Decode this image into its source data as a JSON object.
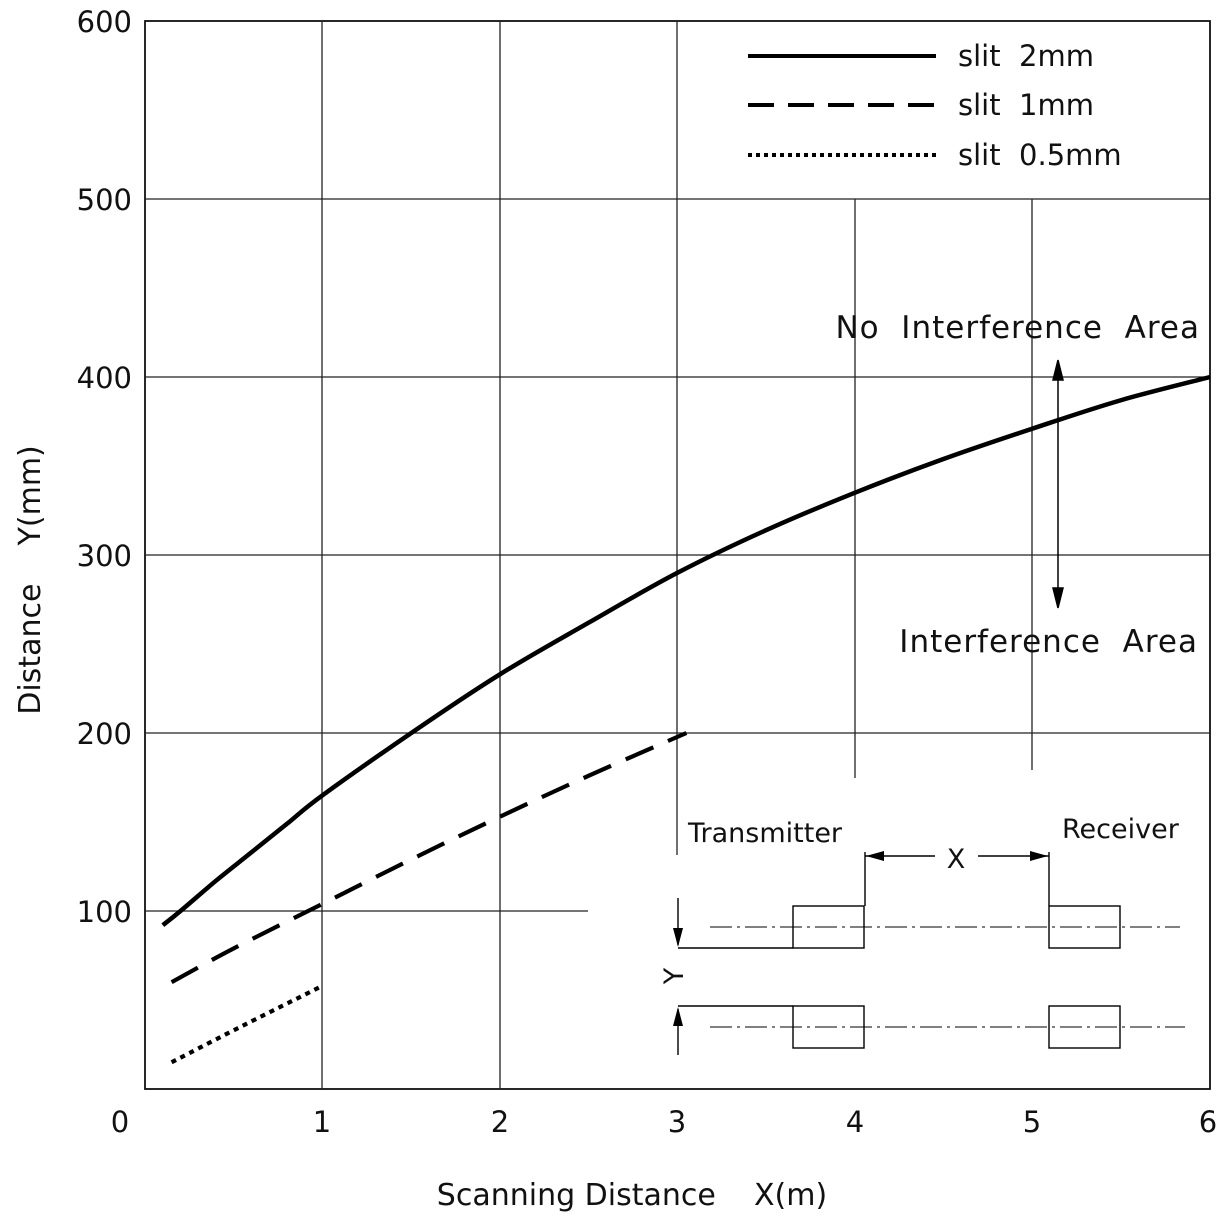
{
  "chart_data": {
    "type": "line",
    "xlabel": "Scanning Distance    X(m)",
    "ylabel": "Distance    Y(mm)",
    "xlim": [
      0,
      6
    ],
    "ylim": [
      0,
      600
    ],
    "x_ticks": [
      "0",
      "1",
      "2",
      "3",
      "4",
      "5",
      "6"
    ],
    "y_ticks": [
      "600",
      "500",
      "400",
      "300",
      "200",
      "100"
    ],
    "grid": true,
    "legend_position": "top-right",
    "series": [
      {
        "name": "slit  2mm",
        "style": "solid",
        "x": [
          0.1,
          0.2,
          0.4,
          0.6,
          0.8,
          1.0,
          1.5,
          2.0,
          2.5,
          3.0,
          3.5,
          4.0,
          4.5,
          5.0,
          5.5,
          6.0
        ],
        "y": [
          92,
          100,
          117,
          133,
          149,
          165,
          200,
          233,
          262,
          290,
          314,
          335,
          354,
          371,
          387,
          400
        ]
      },
      {
        "name": "slit  1mm",
        "style": "dashed",
        "x": [
          0.15,
          0.5,
          1.0,
          1.5,
          2.0,
          2.5,
          3.05
        ],
        "y": [
          60,
          79,
          104,
          129,
          153,
          176,
          200
        ]
      },
      {
        "name": "slit  0.5mm",
        "style": "dotted",
        "x": [
          0.15,
          0.5,
          1.0
        ],
        "y": [
          15,
          33,
          58
        ]
      }
    ],
    "annotations": {
      "upper": "No  Interference  Area",
      "lower": "Interference  Area"
    },
    "inset": {
      "transmitter": "Transmitter",
      "receiver": "Receiver",
      "x_symbol": "X",
      "y_symbol": "Y"
    }
  }
}
